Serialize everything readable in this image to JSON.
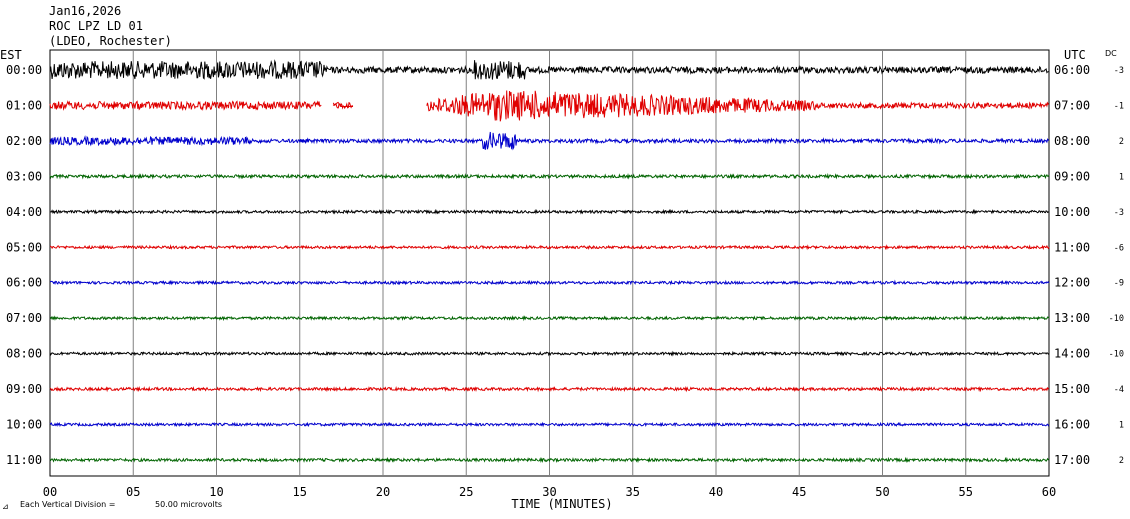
{
  "header": {
    "date": "Jan16,2026",
    "station": "ROC LPZ LD 01",
    "network": "(LDEO, Rochester)"
  },
  "left_axis_label": "EST",
  "right_axis_label": "UTC",
  "dc_label": "DC",
  "footer": {
    "scale_text": "Each Vertical Division =",
    "scale_value": "50.00 microvolts"
  },
  "colors": {
    "black": "#000000",
    "red": "#e00000",
    "blue": "#0000cc",
    "green": "#006400",
    "grid": "#808080"
  },
  "chart_data": {
    "type": "line",
    "xlabel": "TIME (MINUTES)",
    "xlim": [
      0,
      60
    ],
    "x_ticks": [
      "00",
      "05",
      "10",
      "15",
      "20",
      "25",
      "30",
      "35",
      "40",
      "45",
      "50",
      "55",
      "60"
    ],
    "traces": [
      {
        "est": "00:00",
        "utc": "06:00",
        "dc": "-3",
        "color": "black",
        "noise": 3.2
      },
      {
        "est": "01:00",
        "utc": "07:00",
        "dc": "-1",
        "color": "red",
        "noise": 2.8
      },
      {
        "est": "02:00",
        "utc": "08:00",
        "dc": "2",
        "color": "blue",
        "noise": 1.8
      },
      {
        "est": "03:00",
        "utc": "09:00",
        "dc": "1",
        "color": "green",
        "noise": 1.5
      },
      {
        "est": "04:00",
        "utc": "10:00",
        "dc": "-3",
        "color": "black",
        "noise": 1.3
      },
      {
        "est": "05:00",
        "utc": "11:00",
        "dc": "-6",
        "color": "red",
        "noise": 1.3
      },
      {
        "est": "06:00",
        "utc": "12:00",
        "dc": "-9",
        "color": "blue",
        "noise": 1.3
      },
      {
        "est": "07:00",
        "utc": "13:00",
        "dc": "-10",
        "color": "green",
        "noise": 1.3
      },
      {
        "est": "08:00",
        "utc": "14:00",
        "dc": "-10",
        "color": "black",
        "noise": 1.3
      },
      {
        "est": "09:00",
        "utc": "15:00",
        "dc": "-4",
        "color": "red",
        "noise": 1.4
      },
      {
        "est": "10:00",
        "utc": "16:00",
        "dc": "1",
        "color": "blue",
        "noise": 1.3
      },
      {
        "est": "11:00",
        "utc": "17:00",
        "dc": "2",
        "color": "green",
        "noise": 1.4
      }
    ],
    "events": [
      {
        "trace": 0,
        "start_min": 0,
        "end_min": 16.5,
        "amp": 9
      },
      {
        "trace": 1,
        "start_min": 0,
        "end_min": 16.2,
        "amp": 4
      },
      {
        "trace": 1,
        "start_min": 22.6,
        "end_min": 46,
        "amp": 16,
        "peak_min": 27
      },
      {
        "trace": 0,
        "start_min": 25.5,
        "end_min": 28.5,
        "amp": 10
      },
      {
        "trace": 2,
        "start_min": 26,
        "end_min": 28,
        "amp": 9
      },
      {
        "trace": 2,
        "start_min": 0,
        "end_min": 12,
        "amp": 4
      }
    ],
    "gaps": [
      {
        "trace": 1,
        "start_min": 16.3,
        "end_min": 17.0
      },
      {
        "trace": 1,
        "start_min": 18.2,
        "end_min": 22.6
      }
    ]
  }
}
